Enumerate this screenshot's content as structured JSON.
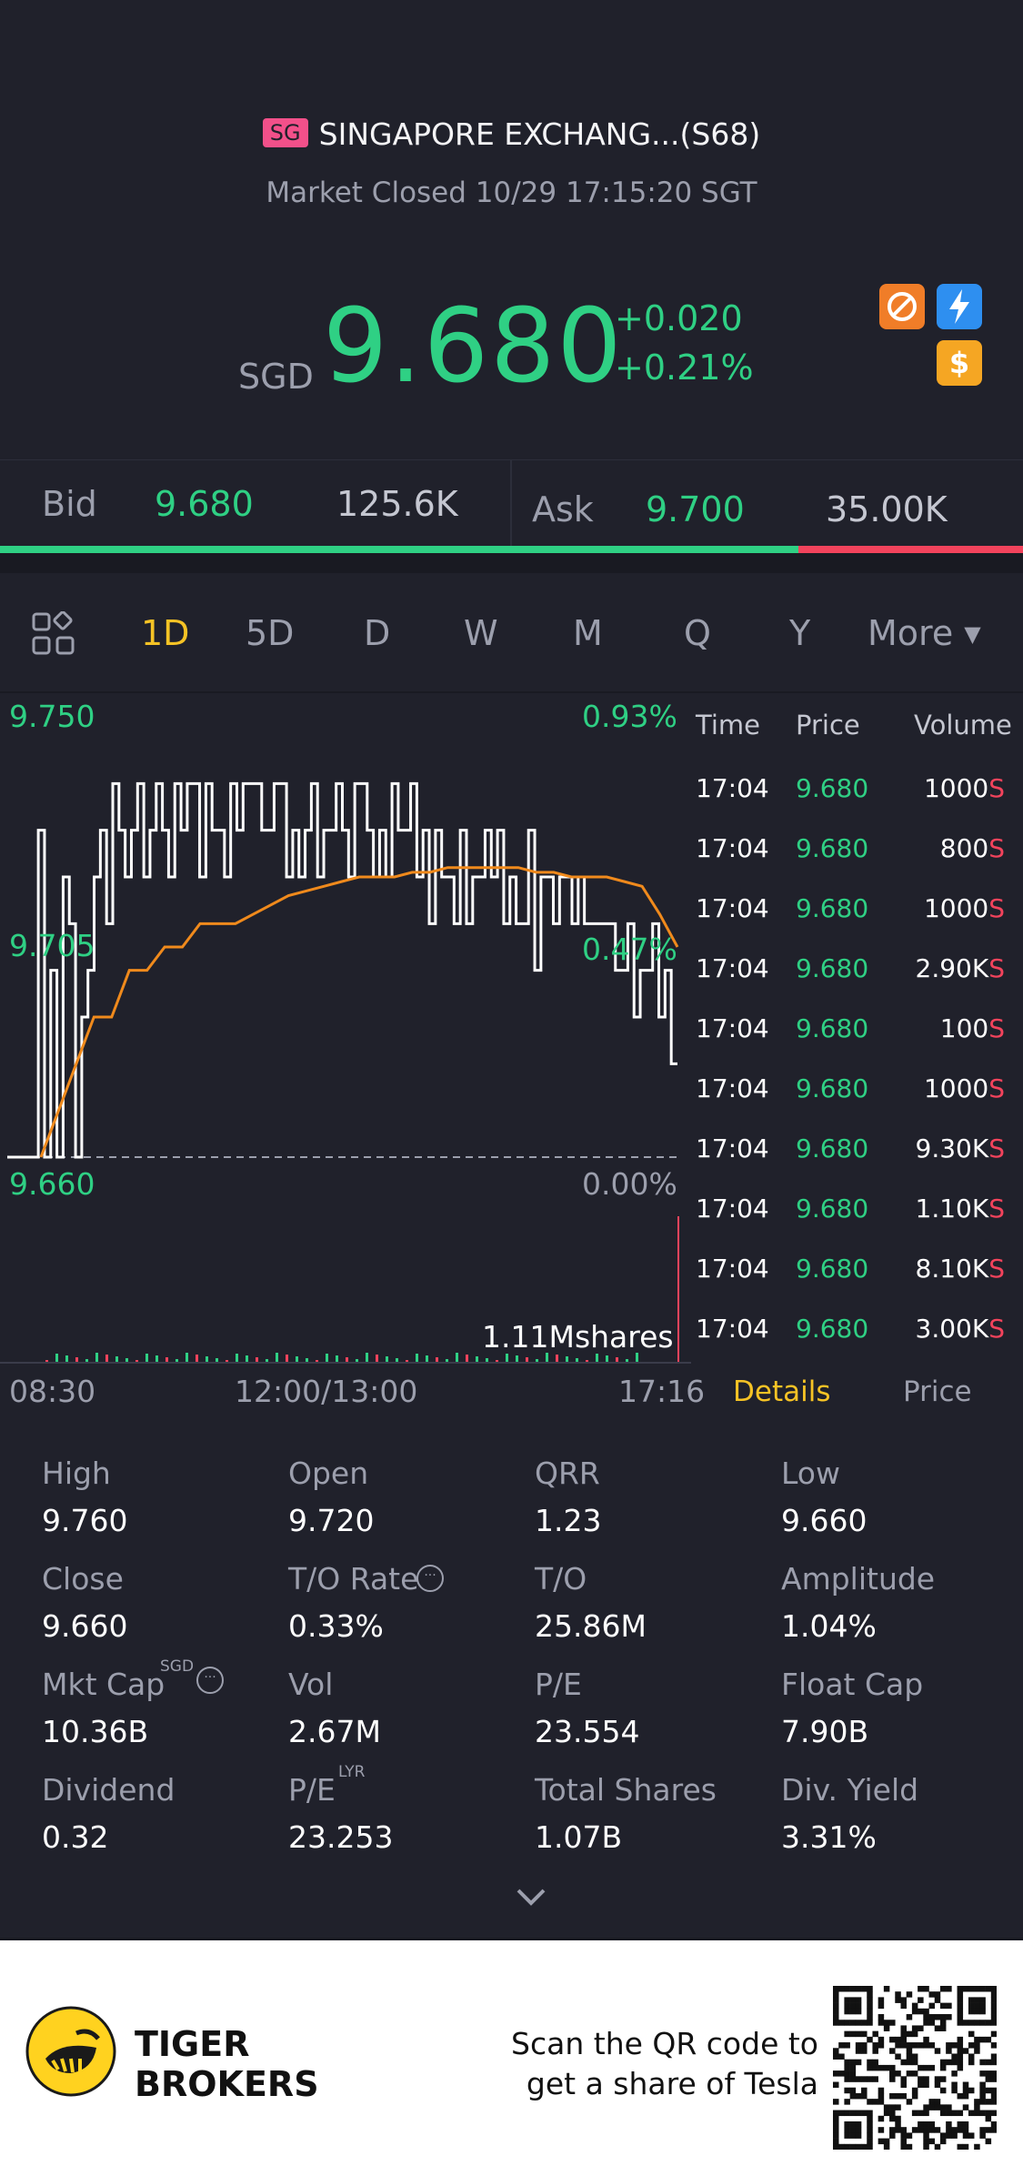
{
  "header": {
    "exchange_badge": "SG",
    "stock_title": "SINGAPORE EXCHANG...(S68)",
    "status": "Market Closed 10/29 17:15:20 SGT",
    "currency": "SGD",
    "price": "9.680",
    "change": "+0.020",
    "change_pct": "+0.21%",
    "icons": [
      "no-short-icon",
      "lightning-icon",
      "dollar-icon"
    ]
  },
  "quote": {
    "bid_label": "Bid",
    "bid_price": "9.680",
    "bid_volume": "125.6K",
    "ask_label": "Ask",
    "ask_price": "9.700",
    "ask_volume": "35.00K",
    "bid_ratio": 0.78
  },
  "tabs": {
    "items": [
      "1D",
      "5D",
      "D",
      "W",
      "M",
      "Q",
      "Y",
      "More"
    ],
    "active": "1D"
  },
  "chart_data": {
    "type": "line",
    "y_labels": {
      "top": "9.750",
      "mid": "9.705",
      "bottom": "9.660"
    },
    "pct_labels": {
      "top": "0.93%",
      "mid": "0.47%",
      "bottom": "0.00%"
    },
    "x_labels": [
      "08:30",
      "12:00/13:00",
      "17:16"
    ],
    "volume_label": "1.11Mshares",
    "ylim": [
      9.66,
      9.75
    ],
    "series": [
      {
        "values": [
          9.66,
          9.66,
          9.66,
          9.66,
          9.66,
          9.73,
          9.66,
          9.7,
          9.66,
          9.72,
          9.71,
          9.66,
          9.69,
          9.7,
          9.72,
          9.73,
          9.71,
          9.74,
          9.73,
          9.72,
          9.73,
          9.74,
          9.72,
          9.73,
          9.74,
          9.73,
          9.72,
          9.74,
          9.73,
          9.74,
          9.74,
          9.72,
          9.74,
          9.73,
          9.73,
          9.72,
          9.74,
          9.73,
          9.74,
          9.74,
          9.74,
          9.73,
          9.73,
          9.74,
          9.74,
          9.72,
          9.73,
          9.72,
          9.73,
          9.74,
          9.72,
          9.73,
          9.73,
          9.74,
          9.73,
          9.72,
          9.74,
          9.74,
          9.73,
          9.72,
          9.73,
          9.72,
          9.74,
          9.73,
          9.73,
          9.74,
          9.72,
          9.73,
          9.71,
          9.73,
          9.72,
          9.72,
          9.71,
          9.73,
          9.71,
          9.72,
          9.72,
          9.73,
          9.72,
          9.73,
          9.71,
          9.72,
          9.71,
          9.71,
          9.73,
          9.7,
          9.72,
          9.72,
          9.71,
          9.72,
          9.72,
          9.71,
          9.72,
          9.71,
          9.71,
          9.71,
          9.71,
          9.71,
          9.7,
          9.7,
          9.71,
          9.69,
          9.7,
          9.7,
          9.71,
          9.69,
          9.7,
          9.68,
          9.68
        ]
      },
      {
        "values": [
          9.66,
          9.67,
          9.68,
          9.69,
          9.69,
          9.7,
          9.7,
          9.705,
          9.705,
          9.71,
          9.71,
          9.71,
          9.712,
          9.714,
          9.716,
          9.717,
          9.718,
          9.719,
          9.72,
          9.72,
          9.72,
          9.721,
          9.721,
          9.722,
          9.722,
          9.722,
          9.722,
          9.722,
          9.721,
          9.721,
          9.72,
          9.72,
          9.72,
          9.719,
          9.718,
          9.712,
          9.705
        ]
      }
    ]
  },
  "ticks": {
    "headers": [
      "Time",
      "Price",
      "Volume"
    ],
    "rows": [
      {
        "time": "17:04",
        "price": "9.680",
        "volume": "1000"
      },
      {
        "time": "17:04",
        "price": "9.680",
        "volume": "800"
      },
      {
        "time": "17:04",
        "price": "9.680",
        "volume": "1000"
      },
      {
        "time": "17:04",
        "price": "9.680",
        "volume": "2.90K"
      },
      {
        "time": "17:04",
        "price": "9.680",
        "volume": "100"
      },
      {
        "time": "17:04",
        "price": "9.680",
        "volume": "1000"
      },
      {
        "time": "17:04",
        "price": "9.680",
        "volume": "9.30K"
      },
      {
        "time": "17:04",
        "price": "9.680",
        "volume": "1.10K"
      },
      {
        "time": "17:04",
        "price": "9.680",
        "volume": "8.10K"
      },
      {
        "time": "17:04",
        "price": "9.680",
        "volume": "3.00K"
      }
    ],
    "side_marker": "S",
    "tab_details": "Details",
    "tab_price": "Price"
  },
  "stats": {
    "high_label": "High",
    "high": "9.760",
    "open_label": "Open",
    "open": "9.720",
    "qrr_label": "QRR",
    "qrr": "1.23",
    "low_label": "Low",
    "low": "9.660",
    "close_label": "Close",
    "close": "9.660",
    "to_rate_label": "T/O Rate",
    "to_rate": "0.33%",
    "to_label": "T/O",
    "to": "25.86M",
    "amplitude_label": "Amplitude",
    "amplitude": "1.04%",
    "mktcap_label": "Mkt Cap",
    "mktcap_sup": "SGD",
    "mktcap": "10.36B",
    "vol_label": "Vol",
    "vol": "2.67M",
    "pe_label": "P/E",
    "pe": "23.554",
    "floatcap_label": "Float Cap",
    "floatcap": "7.90B",
    "dividend_label": "Dividend",
    "dividend": "0.32",
    "pe_lyr_label": "P/E",
    "pe_lyr_sup": "LYR",
    "pe_lyr": "23.253",
    "total_shares_label": "Total Shares",
    "total_shares": "1.07B",
    "div_yield_label": "Div. Yield",
    "div_yield": "3.31%"
  },
  "footer": {
    "brand_line1": "TIGER",
    "brand_line2": "BROKERS",
    "promo_line1": "Scan the QR code to",
    "promo_line2": "get a share of Tesla"
  }
}
